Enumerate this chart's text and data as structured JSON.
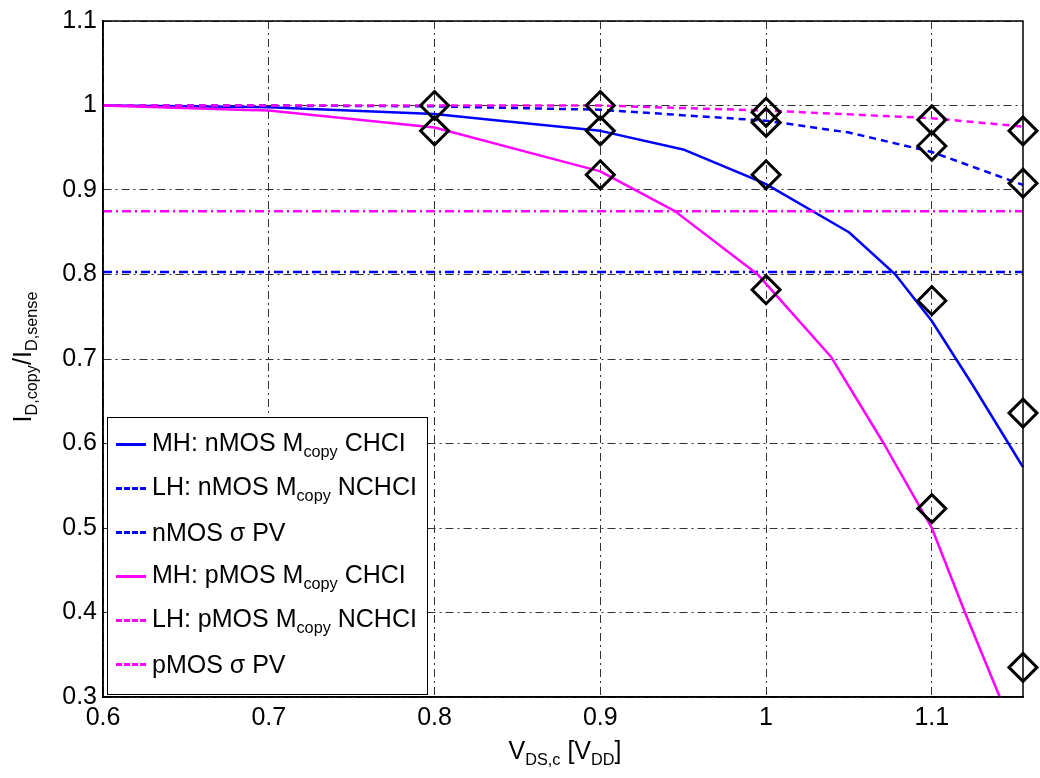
{
  "chart_data": {
    "type": "line",
    "xlabel": "V$_{DS,c}$ [V$_{DD}$]",
    "ylabel": "I$_{D,copy}$/I$_{D,sense}$",
    "xlim": [
      0.6,
      1.155
    ],
    "xticks": [
      0.6,
      0.7,
      0.8,
      0.9,
      1,
      1.1
    ],
    "ylim": [
      0.3,
      1.1
    ],
    "yticks": [
      0.3,
      0.4,
      0.5,
      0.6,
      0.7,
      0.8,
      0.9,
      1,
      1.1
    ],
    "grid": true,
    "legend": "bottom left",
    "series": [
      {
        "name": "MH: nMOS M$_{copy}$ CHCI",
        "color": "#0000ff",
        "line_style": "solid",
        "x": [
          0.6,
          0.7,
          0.8,
          0.9,
          0.95,
          1.0,
          1.05,
          1.078,
          1.1,
          1.125,
          1.155
        ],
        "values": [
          1.0,
          0.998,
          0.99,
          0.97,
          0.948,
          0.907,
          0.85,
          0.8,
          0.745,
          0.668,
          0.572
        ]
      },
      {
        "name": "LH: nMOS M$_{copy}$ NCHCI",
        "color": "#0000ff",
        "line_style": "dashed",
        "x": [
          0.6,
          0.7,
          0.8,
          0.9,
          1.0,
          1.05,
          1.1,
          1.155
        ],
        "values": [
          1.0,
          1.0,
          0.999,
          0.995,
          0.982,
          0.968,
          0.945,
          0.906
        ]
      },
      {
        "name": "nMOS σ PV",
        "color": "#0000ff",
        "line_style": "dashdot",
        "x": [
          0.6,
          1.155
        ],
        "values": [
          0.803,
          0.803
        ]
      },
      {
        "name": "MH: pMOS M$_{copy}$ CHCI",
        "color": "#ff00ff",
        "line_style": "solid",
        "x": [
          0.6,
          0.7,
          0.8,
          0.9,
          0.945,
          0.995,
          1.039,
          1.071,
          1.1,
          1.12,
          1.141
        ],
        "values": [
          1.0,
          0.994,
          0.974,
          0.922,
          0.875,
          0.8,
          0.703,
          0.6,
          0.5,
          0.4,
          0.3
        ]
      },
      {
        "name": "LH: pMOS M$_{copy}$ NCHCI",
        "color": "#ff00ff",
        "line_style": "dashed",
        "x": [
          0.6,
          0.8,
          0.9,
          1.0,
          1.1,
          1.155
        ],
        "values": [
          1.0,
          1.0,
          1.0,
          0.994,
          0.985,
          0.975
        ]
      },
      {
        "name": "pMOS σ PV",
        "color": "#ff00ff",
        "line_style": "dashdot",
        "x": [
          0.6,
          1.155
        ],
        "values": [
          0.875,
          0.875
        ]
      },
      {
        "type": "scatter",
        "color": "#000000",
        "marker": "diamond",
        "x": [
          0.8,
          0.8,
          0.9,
          0.9,
          0.9,
          1,
          1,
          1,
          1,
          1.1,
          1.1,
          1.1,
          1.1,
          1.155,
          1.155,
          1.155,
          1.155
        ],
        "values": [
          1.0,
          0.97,
          1.0,
          0.97,
          0.918,
          0.992,
          0.98,
          0.918,
          0.782,
          0.983,
          0.952,
          0.769,
          0.523,
          0.97,
          0.908,
          0.636,
          0.335
        ]
      }
    ]
  }
}
